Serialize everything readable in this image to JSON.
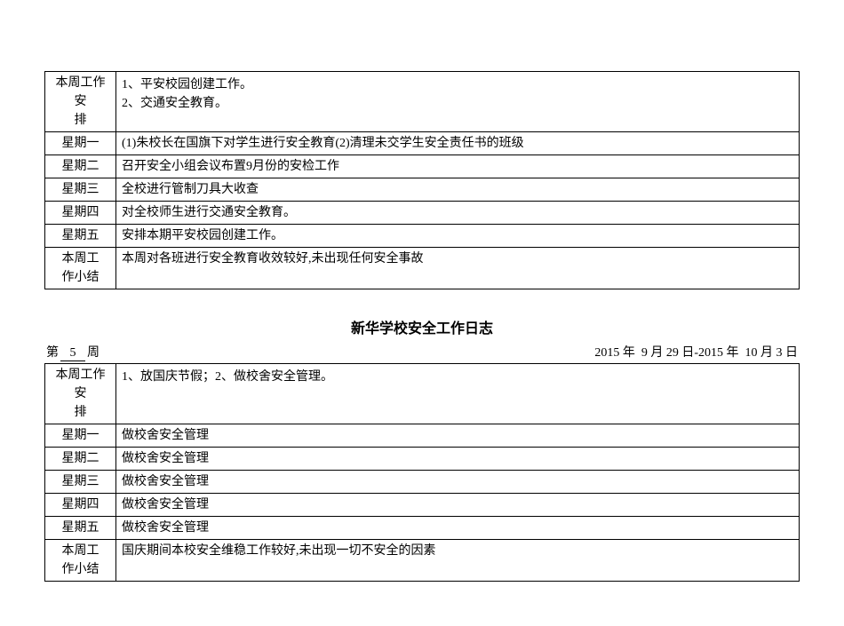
{
  "section1": {
    "arrange_label": "本周工作安\n排",
    "arrange_content": "1、平安校园创建工作。\n2、交通安全教育。",
    "days": [
      {
        "label": "星期一",
        "content": "(1)朱校长在国旗下对学生进行安全教育(2)清理未交学生安全责任书的班级"
      },
      {
        "label": "星期二",
        "content": "召开安全小组会议布置9月份的安检工作"
      },
      {
        "label": "星期三",
        "content": "全校进行管制刀具大收查"
      },
      {
        "label": "星期四",
        "content": "对全校师生进行交通安全教育。"
      },
      {
        "label": "星期五",
        "content": "安排本期平安校园创建工作。"
      }
    ],
    "summary_label": "本周工\n作小结",
    "summary_content": "本周对各班进行安全教育收效较好,未出现任何安全事故"
  },
  "section2": {
    "title": "新华学校安全工作日志",
    "week_prefix": "第",
    "week_number": "5",
    "week_suffix": "周",
    "date_range": "2015 年  9 月 29 日-2015 年  10 月 3 日",
    "arrange_label": "本周工作安\n排",
    "arrange_content": "1、放国庆节假；2、做校舍安全管理。",
    "days": [
      {
        "label": "星期一",
        "content": "做校舍安全管理"
      },
      {
        "label": "星期二",
        "content": "做校舍安全管理"
      },
      {
        "label": "星期三",
        "content": "做校舍安全管理"
      },
      {
        "label": "星期四",
        "content": "做校舍安全管理"
      },
      {
        "label": "星期五",
        "content": "做校舍安全管理"
      }
    ],
    "summary_label": "本周工\n作小结",
    "summary_content": "国庆期间本校安全维稳工作较好,未出现一切不安全的因素"
  }
}
